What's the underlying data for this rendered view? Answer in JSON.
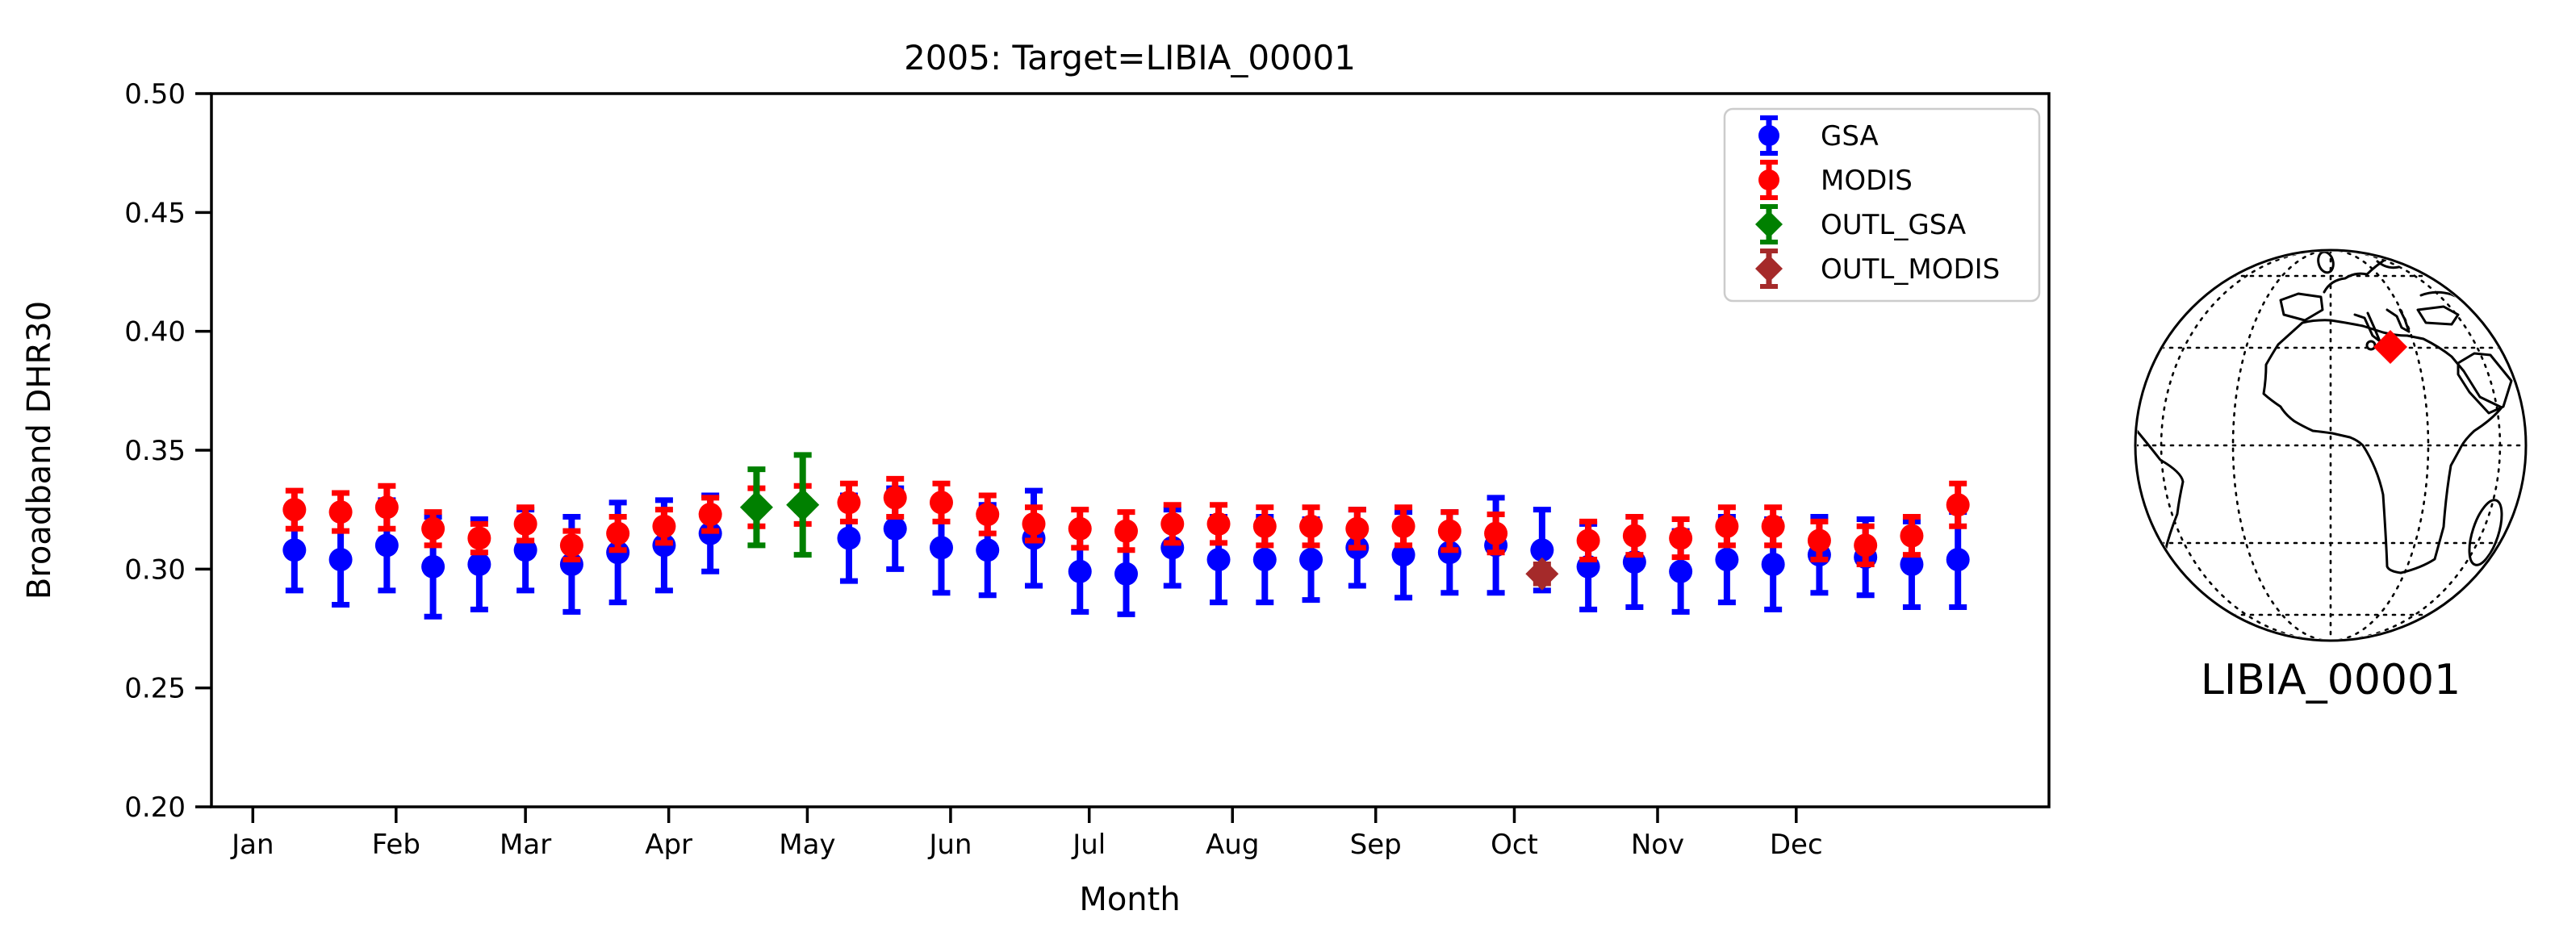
{
  "figure": {
    "title": "2005: Target=LIBIA_00001",
    "background": "#ffffff"
  },
  "chart_data": {
    "type": "scatter-errorbar",
    "title": "2005: Target=LIBIA_00001",
    "xlabel": "Month",
    "ylabel": "Broadband DHR30",
    "ylim": [
      0.2,
      0.5
    ],
    "yticks": [
      0.5,
      0.45,
      0.4,
      0.35,
      0.3,
      0.25,
      0.2
    ],
    "ytick_labels": [
      "0.50",
      "0.45",
      "0.40",
      "0.35",
      "0.30",
      "0.25",
      "0.20"
    ],
    "grid": false,
    "xlim_days": [
      -8,
      390
    ],
    "xticks": [
      {
        "label": "Jan",
        "day": 1
      },
      {
        "label": "Feb",
        "day": 32
      },
      {
        "label": "Mar",
        "day": 60
      },
      {
        "label": "Apr",
        "day": 91
      },
      {
        "label": "May",
        "day": 121
      },
      {
        "label": "Jun",
        "day": 152
      },
      {
        "label": "Jul",
        "day": 182
      },
      {
        "label": "Aug",
        "day": 213
      },
      {
        "label": "Sep",
        "day": 244
      },
      {
        "label": "Oct",
        "day": 274
      },
      {
        "label": "Nov",
        "day": 305
      },
      {
        "label": "Dec",
        "day": 335
      }
    ],
    "x_days": [
      10,
      20,
      30,
      40,
      50,
      60,
      70,
      80,
      90,
      100,
      110,
      120,
      130,
      140,
      150,
      160,
      170,
      180,
      190,
      200,
      210,
      220,
      230,
      240,
      250,
      260,
      270,
      280,
      290,
      300,
      310,
      320,
      330,
      340,
      350,
      360,
      370
    ],
    "series": [
      {
        "name": "GSA",
        "color": "#0000ff",
        "marker": "circle",
        "values": [
          0.308,
          0.304,
          0.31,
          0.301,
          0.302,
          0.308,
          0.302,
          0.307,
          0.31,
          0.315,
          null,
          null,
          0.313,
          0.317,
          0.309,
          0.308,
          0.313,
          0.299,
          0.298,
          0.309,
          0.304,
          0.304,
          0.304,
          0.309,
          0.306,
          0.307,
          0.31,
          0.308,
          0.301,
          0.303,
          0.299,
          0.304,
          0.302,
          0.306,
          0.305,
          0.302,
          0.304
        ],
        "errors": [
          0.017,
          0.019,
          0.019,
          0.021,
          0.019,
          0.017,
          0.02,
          0.021,
          0.019,
          0.016,
          null,
          null,
          0.018,
          0.017,
          0.019,
          0.019,
          0.02,
          0.017,
          0.017,
          0.016,
          0.018,
          0.018,
          0.017,
          0.016,
          0.018,
          0.017,
          0.02,
          0.017,
          0.018,
          0.019,
          0.017,
          0.018,
          0.019,
          0.016,
          0.016,
          0.018,
          0.02
        ]
      },
      {
        "name": "MODIS",
        "color": "#ff0000",
        "marker": "circle",
        "values": [
          0.325,
          0.324,
          0.326,
          0.317,
          0.313,
          0.319,
          0.31,
          0.315,
          0.318,
          0.323,
          0.326,
          0.327,
          0.328,
          0.33,
          0.328,
          0.323,
          0.319,
          0.317,
          0.316,
          0.319,
          0.319,
          0.318,
          0.318,
          0.317,
          0.318,
          0.316,
          0.315,
          null,
          0.312,
          0.314,
          0.313,
          0.318,
          0.318,
          0.312,
          0.31,
          0.314,
          0.327
        ],
        "errors": [
          0.008,
          0.008,
          0.009,
          0.007,
          0.006,
          0.007,
          0.006,
          0.007,
          0.007,
          0.007,
          0.008,
          0.008,
          0.008,
          0.008,
          0.008,
          0.008,
          0.007,
          0.008,
          0.008,
          0.008,
          0.008,
          0.008,
          0.008,
          0.008,
          0.008,
          0.008,
          0.008,
          null,
          0.008,
          0.008,
          0.008,
          0.008,
          0.008,
          0.008,
          0.008,
          0.008,
          0.009
        ]
      },
      {
        "name": "OUTL_GSA",
        "color": "#008000",
        "marker": "diamond",
        "values": [
          null,
          null,
          null,
          null,
          null,
          null,
          null,
          null,
          null,
          null,
          0.326,
          0.327,
          null,
          null,
          null,
          null,
          null,
          null,
          null,
          null,
          null,
          null,
          null,
          null,
          null,
          null,
          null,
          null,
          null,
          null,
          null,
          null,
          null,
          null,
          null,
          null,
          null
        ],
        "errors": [
          null,
          null,
          null,
          null,
          null,
          null,
          null,
          null,
          null,
          null,
          0.016,
          0.021,
          null,
          null,
          null,
          null,
          null,
          null,
          null,
          null,
          null,
          null,
          null,
          null,
          null,
          null,
          null,
          null,
          null,
          null,
          null,
          null,
          null,
          null,
          null,
          null,
          null
        ]
      },
      {
        "name": "OUTL_MODIS",
        "color": "#a52a2a",
        "marker": "diamond",
        "values": [
          null,
          null,
          null,
          null,
          null,
          null,
          null,
          null,
          null,
          null,
          null,
          null,
          null,
          null,
          null,
          null,
          null,
          null,
          null,
          null,
          null,
          null,
          null,
          null,
          null,
          null,
          null,
          0.298,
          null,
          null,
          null,
          null,
          null,
          null,
          null,
          null,
          null
        ],
        "errors": [
          null,
          null,
          null,
          null,
          null,
          null,
          null,
          null,
          null,
          null,
          null,
          null,
          null,
          null,
          null,
          null,
          null,
          null,
          null,
          null,
          null,
          null,
          null,
          null,
          null,
          null,
          null,
          0.004,
          null,
          null,
          null,
          null,
          null,
          null,
          null,
          null,
          null
        ]
      }
    ],
    "legend": {
      "position": "upper right",
      "entries": [
        {
          "label": "GSA",
          "color": "#0000ff",
          "marker": "circle"
        },
        {
          "label": "MODIS",
          "color": "#ff0000",
          "marker": "circle"
        },
        {
          "label": "OUTL_GSA",
          "color": "#008000",
          "marker": "diamond"
        },
        {
          "label": "OUTL_MODIS",
          "color": "#a52a2a",
          "marker": "diamond"
        }
      ]
    }
  },
  "map": {
    "label": "LIBIA_00001",
    "marker_color": "#ff0000",
    "marker_shape": "diamond"
  }
}
